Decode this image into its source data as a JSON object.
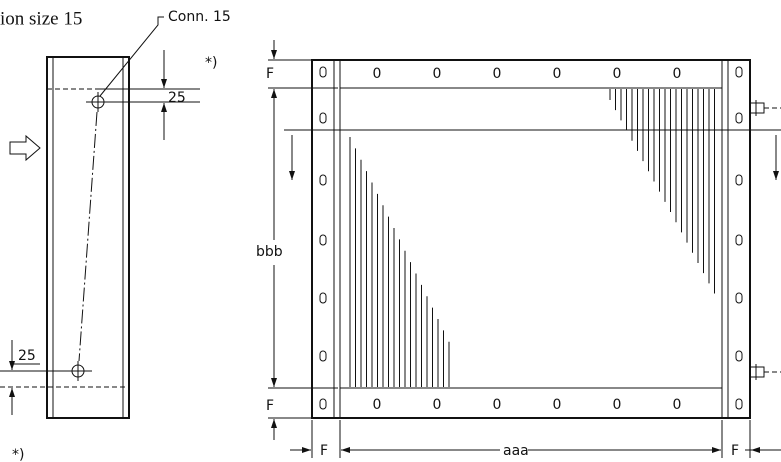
{
  "side_view": {
    "caption": "ion size 15",
    "connection_label": "Conn. 15",
    "dim_top": "25",
    "dim_bottom": "25",
    "note_top": "*)",
    "note_bottom": "*)"
  },
  "front_view": {
    "top_labels": [
      "0",
      "0",
      "0",
      "0",
      "0",
      "0"
    ],
    "bottom_labels": [
      "0",
      "0",
      "0",
      "0",
      "0",
      "0"
    ],
    "height_label": "bbb",
    "width_label": "aaa",
    "f_top": "F",
    "f_bottom": "F",
    "f_left": "F",
    "f_right": "F"
  }
}
